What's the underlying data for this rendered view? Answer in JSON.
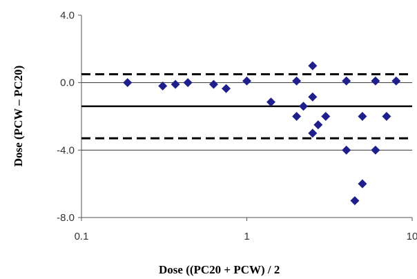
{
  "chart_data": {
    "type": "scatter",
    "title": "",
    "xlabel": "Dose ((PC20 + PCW) / 2",
    "ylabel": "Dose (PCW – PC20)",
    "x_scale": "log",
    "xlim": [
      0.1,
      10
    ],
    "ylim": [
      -8.0,
      4.0
    ],
    "x_ticks": [
      "0.1",
      "1",
      "10"
    ],
    "y_ticks": [
      "4.0",
      "0.0",
      "-4.0",
      "-8.0"
    ],
    "grid": false,
    "marker_color": "#1f1f8c",
    "reference_lines": [
      {
        "role": "upper-limit",
        "y": 0.5,
        "style": "dashed"
      },
      {
        "role": "zero",
        "y": 0.0,
        "style": "thin"
      },
      {
        "role": "mean",
        "y": -1.4,
        "style": "solid"
      },
      {
        "role": "lower-limit",
        "y": -3.3,
        "style": "dashed"
      },
      {
        "role": "minus-four",
        "y": -4.0,
        "style": "thin"
      }
    ],
    "points": [
      {
        "x": 0.19,
        "y": 0.0
      },
      {
        "x": 0.31,
        "y": -0.2
      },
      {
        "x": 0.37,
        "y": -0.1
      },
      {
        "x": 0.44,
        "y": 0.0
      },
      {
        "x": 0.63,
        "y": -0.1
      },
      {
        "x": 0.75,
        "y": -0.35
      },
      {
        "x": 1.0,
        "y": 0.1
      },
      {
        "x": 1.4,
        "y": -1.15
      },
      {
        "x": 2.0,
        "y": 0.1
      },
      {
        "x": 2.0,
        "y": -2.0
      },
      {
        "x": 2.2,
        "y": -1.4
      },
      {
        "x": 2.5,
        "y": 1.0
      },
      {
        "x": 2.5,
        "y": -0.85
      },
      {
        "x": 2.5,
        "y": -3.0
      },
      {
        "x": 2.7,
        "y": -2.5
      },
      {
        "x": 3.0,
        "y": -2.0
      },
      {
        "x": 4.0,
        "y": 0.1
      },
      {
        "x": 4.0,
        "y": -4.0
      },
      {
        "x": 4.5,
        "y": -7.0
      },
      {
        "x": 5.0,
        "y": -2.0
      },
      {
        "x": 5.0,
        "y": -6.0
      },
      {
        "x": 6.0,
        "y": 0.1
      },
      {
        "x": 6.0,
        "y": -4.0
      },
      {
        "x": 7.0,
        "y": -2.0
      },
      {
        "x": 8.0,
        "y": 0.1
      }
    ]
  }
}
